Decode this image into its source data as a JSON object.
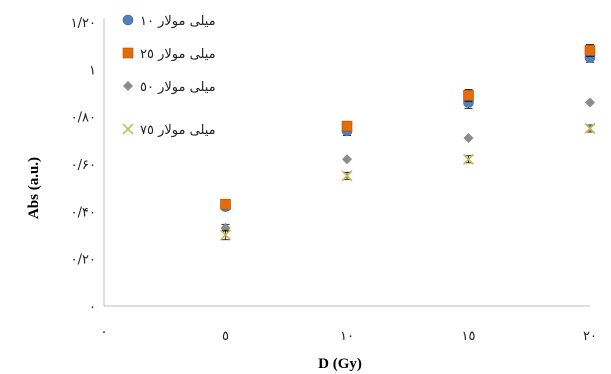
{
  "chart_data": {
    "type": "scatter",
    "title": "",
    "xlabel": "D (Gy)",
    "ylabel": "Abs (a.u.)",
    "x": [
      5,
      10,
      15,
      20
    ],
    "x_tick_labels": [
      "٥",
      "١٠",
      "١٥",
      "٢٠"
    ],
    "x_origin_label": "٠",
    "xlim": [
      0,
      20
    ],
    "y_tick_labels": [
      "٠",
      "٠/٢٠",
      "٠/۴٠",
      "٠/۶٠",
      "٠/٨٠",
      "١",
      "١/٢٠"
    ],
    "y_ticks": [
      0,
      0.2,
      0.4,
      0.6,
      0.8,
      1.0,
      1.2
    ],
    "ylim": [
      0,
      1.2
    ],
    "grid": false,
    "legend_position": "top-left",
    "series": [
      {
        "name": "میلی مولار ١٠",
        "marker": "circle",
        "color": "#4f81bd",
        "values": [
          0.42,
          0.74,
          0.86,
          1.05
        ],
        "error": [
          0.015,
          0.02,
          0.025,
          0.02
        ]
      },
      {
        "name": "میلی مولار ٢٥",
        "marker": "square",
        "color": "#e46c0a",
        "values": [
          0.43,
          0.76,
          0.89,
          1.08
        ],
        "error": [
          0.015,
          0.02,
          0.025,
          0.025
        ]
      },
      {
        "name": "میلی مولار ٥٠",
        "marker": "diamond",
        "color": "#8c8c8c",
        "values": [
          0.33,
          0.62,
          0.71,
          0.86
        ],
        "error": [
          0.015,
          0.0,
          0.0,
          0.0
        ]
      },
      {
        "name": "میلی مولار ٧٥",
        "marker": "cross",
        "color": "#c9b95a",
        "values": [
          0.3,
          0.55,
          0.62,
          0.75
        ],
        "error": [
          0.02,
          0.015,
          0.015,
          0.015
        ]
      }
    ]
  }
}
